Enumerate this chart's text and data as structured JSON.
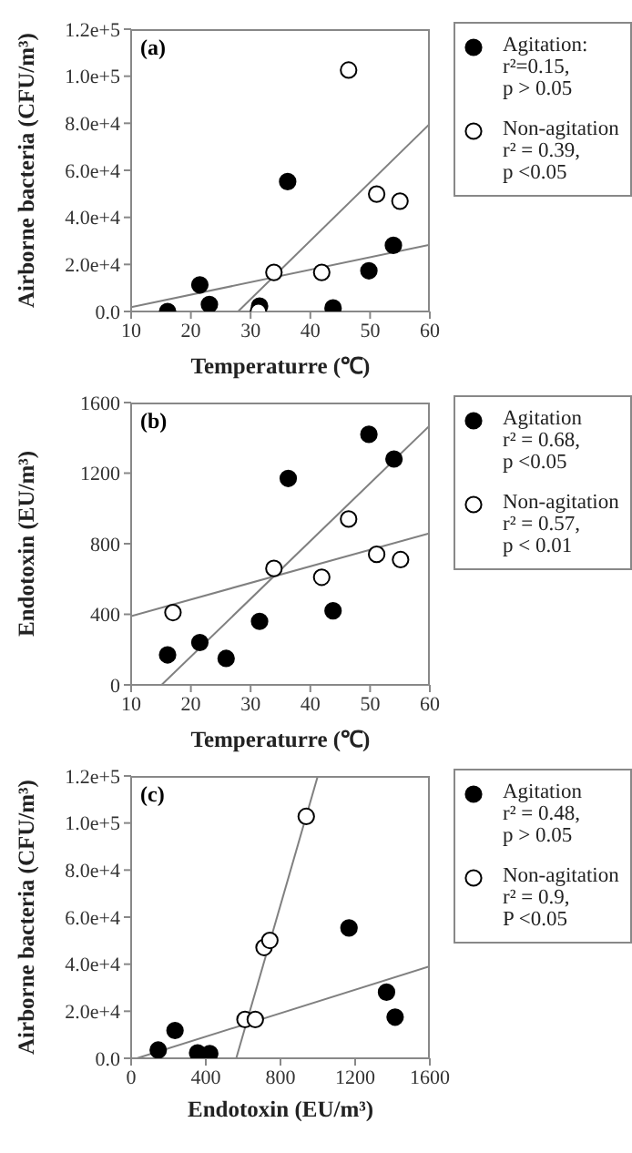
{
  "chart_data": [
    {
      "type": "scatter",
      "title": "(a)",
      "xlabel": "Temperaturre (℃)",
      "ylabel": "Airborne bacteria (CFU/m³)",
      "xlim": [
        10,
        60
      ],
      "xticks": [
        10,
        20,
        30,
        40,
        50,
        60
      ],
      "ylim": [
        0,
        120000
      ],
      "yticks": [
        {
          "value": 0,
          "label": "0.0"
        },
        {
          "value": 20000,
          "label": "2.0e+4"
        },
        {
          "value": 40000,
          "label": "4.0e+4"
        },
        {
          "value": 60000,
          "label": "6.0e+4"
        },
        {
          "value": 80000,
          "label": "8.0e+4"
        },
        {
          "value": 100000,
          "label": "1.0e+5"
        },
        {
          "value": 120000,
          "label": "1.2e+5"
        }
      ],
      "legend": "right",
      "annotations": [
        "r²=0.15,\np > 0.05",
        "r² = 0.39,\np <0.05"
      ],
      "series": [
        {
          "name": "Agitation:",
          "color": "#000000",
          "marker": "circle",
          "x": [
            16.1,
            21.5,
            23.1,
            31.5,
            36.2,
            43.8,
            49.8,
            53.9
          ],
          "values": [
            0,
            11300,
            3000,
            2300,
            55200,
            1500,
            17300,
            28100
          ]
        },
        {
          "name": "Non-agitation",
          "color": "#ffffff",
          "marker": "circle",
          "x": [
            31.3,
            33.9,
            41.9,
            46.4,
            51.1,
            55.0
          ],
          "values": [
            0,
            16600,
            16600,
            102600,
            49900,
            46900
          ]
        },
        {
          "type": "line",
          "color": "#808080",
          "marker": "none",
          "x": [
            10,
            60
          ],
          "values": [
            1800,
            28400
          ]
        },
        {
          "type": "line",
          "color": "#808080",
          "marker": "none",
          "x": [
            27.9,
            60
          ],
          "values": [
            0,
            79800
          ]
        }
      ]
    },
    {
      "type": "scatter",
      "title": "(b)",
      "xlabel": "Temperaturre (℃)",
      "ylabel": "Endotoxin (EU/m³)",
      "xlim": [
        10,
        60
      ],
      "xticks": [
        10,
        20,
        30,
        40,
        50,
        60
      ],
      "ylim": [
        0,
        1600
      ],
      "yticks": [
        0,
        400,
        800,
        1200,
        1600
      ],
      "legend": "right",
      "annotations": [
        "r² = 0.68,\np <0.05",
        "r² = 0.57,\np < 0.01"
      ],
      "series": [
        {
          "name": "Agitation",
          "color": "#000000",
          "marker": "circle",
          "x": [
            16.1,
            21.5,
            25.9,
            31.5,
            36.3,
            43.8,
            49.8,
            54.0
          ],
          "values": [
            170,
            240,
            150,
            360,
            1170,
            420,
            1420,
            1280
          ]
        },
        {
          "name": "Non-agitation",
          "color": "#ffffff",
          "marker": "circle",
          "x": [
            17.0,
            33.9,
            41.9,
            46.4,
            51.1,
            55.1
          ],
          "values": [
            410,
            660,
            610,
            940,
            740,
            710
          ]
        },
        {
          "type": "line",
          "color": "#808080",
          "marker": "none",
          "x": [
            15.1,
            60
          ],
          "values": [
            0,
            1470
          ]
        },
        {
          "type": "line",
          "color": "#808080",
          "marker": "none",
          "x": [
            10,
            60
          ],
          "values": [
            390,
            860
          ]
        }
      ]
    },
    {
      "type": "scatter",
      "title": "(c)",
      "xlabel": "Endotoxin (EU/m³)",
      "ylabel": "Airborne bacteria (CFU/m³)",
      "xlim": [
        0,
        1600
      ],
      "xticks": [
        0,
        400,
        800,
        1200,
        1600
      ],
      "ylim": [
        0,
        120000
      ],
      "yticks": [
        {
          "value": 0,
          "label": "0.0"
        },
        {
          "value": 20000,
          "label": "2.0e+4"
        },
        {
          "value": 40000,
          "label": "4.0e+4"
        },
        {
          "value": 60000,
          "label": "6.0e+4"
        },
        {
          "value": 80000,
          "label": "8.0e+4"
        },
        {
          "value": 100000,
          "label": "1.0e+5"
        },
        {
          "value": 120000,
          "label": "1.2e+5"
        }
      ],
      "legend": "right",
      "annotations": [
        "r² = 0.48,\np > 0.05",
        "r² = 0.9,\nP <0.05"
      ],
      "series": [
        {
          "name": "Agitation",
          "color": "#000000",
          "marker": "circle",
          "x": [
            145,
            235,
            356,
            421,
            1167,
            1368,
            1414
          ],
          "values": [
            3500,
            11800,
            2300,
            2000,
            55400,
            28100,
            17500
          ]
        },
        {
          "name": "Non-agitation",
          "color": "#ffffff",
          "marker": "circle",
          "x": [
            610,
            665,
            712,
            743,
            938
          ],
          "values": [
            16500,
            16500,
            47100,
            50100,
            102800
          ]
        },
        {
          "type": "line",
          "color": "#808080",
          "marker": "none",
          "x": [
            31,
            1600
          ],
          "values": [
            0,
            39100
          ]
        },
        {
          "type": "line",
          "color": "#808080",
          "marker": "none",
          "x": [
            563,
            1000
          ],
          "values": [
            0,
            120000
          ]
        }
      ]
    }
  ]
}
